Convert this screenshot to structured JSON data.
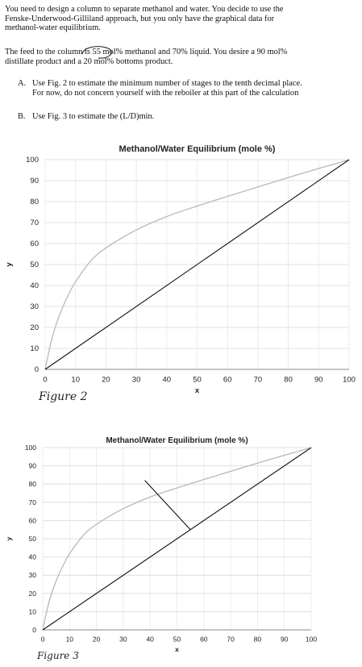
{
  "problem": {
    "intro_lines": [
      "You need to design a column to separate methanol and water. You decide to use the",
      "Fenske-Underwood-Gilliland approach, but you only have the graphical data for",
      "methanol-water equilibrium."
    ],
    "feed_lines": [
      "The feed to the column is 55 mol% methanol and 70% liquid. You desire a 90 mol%",
      "distillate product and a 20 mol% bottoms product."
    ],
    "questions": [
      {
        "letter": "A.",
        "lines": [
          "Use Fig. 2 to estimate the minimum number of stages to the tenth decimal place.",
          "For now, do not concern yourself with the reboiler at this part of the calculation"
        ]
      },
      {
        "letter": "B.",
        "lines": [
          "Use Fig. 3 to estimate the (L/D)min."
        ]
      }
    ]
  },
  "handwritten": {
    "fig2_caption": "Figure 2",
    "fig3_caption": "Figure 3"
  },
  "chart_data": [
    {
      "type": "line",
      "title": "Methanol/Water Equilibrium (mole %)",
      "xlabel": "x",
      "ylabel": "y",
      "xlim": [
        0,
        100
      ],
      "ylim": [
        0,
        100
      ],
      "xticks": [
        0,
        10,
        20,
        30,
        40,
        50,
        60,
        70,
        80,
        90,
        100
      ],
      "yticks": [
        0,
        10,
        20,
        30,
        40,
        50,
        60,
        70,
        80,
        90,
        100
      ],
      "grid": true,
      "series": [
        {
          "color": "#b8b8b8",
          "x": [
            0,
            2,
            4,
            6,
            8,
            10,
            15,
            20,
            30,
            40,
            50,
            60,
            70,
            80,
            90,
            95,
            100
          ],
          "y": [
            0,
            13.4,
            23,
            30.4,
            36.5,
            41.8,
            51.7,
            57.9,
            66.5,
            72.9,
            77.9,
            82.5,
            87,
            91.5,
            95.8,
            97.9,
            100
          ]
        },
        {
          "color": "#111111",
          "x": [
            0,
            100
          ],
          "y": [
            0,
            100
          ]
        }
      ]
    },
    {
      "type": "line",
      "title": "Methanol/Water Equilibrium (mole %)",
      "xlabel": "x",
      "ylabel": "y",
      "xlim": [
        0,
        100
      ],
      "ylim": [
        0,
        100
      ],
      "xticks": [
        0,
        10,
        20,
        30,
        40,
        50,
        60,
        70,
        80,
        90,
        100
      ],
      "yticks": [
        0,
        10,
        20,
        30,
        40,
        50,
        60,
        70,
        80,
        90,
        100
      ],
      "grid": true,
      "series": [
        {
          "color": "#b8b8b8",
          "x": [
            0,
            2,
            4,
            6,
            8,
            10,
            15,
            20,
            30,
            40,
            50,
            60,
            70,
            80,
            90,
            95,
            100
          ],
          "y": [
            0,
            13.4,
            23,
            30.4,
            36.5,
            41.8,
            51.7,
            57.9,
            66.5,
            72.9,
            77.9,
            82.5,
            87,
            91.5,
            95.8,
            97.9,
            100
          ]
        },
        {
          "color": "#111111",
          "x": [
            0,
            100
          ],
          "y": [
            0,
            100
          ]
        },
        {
          "color": "#111111",
          "x": [
            38,
            55
          ],
          "y": [
            82,
            55
          ]
        }
      ]
    }
  ]
}
